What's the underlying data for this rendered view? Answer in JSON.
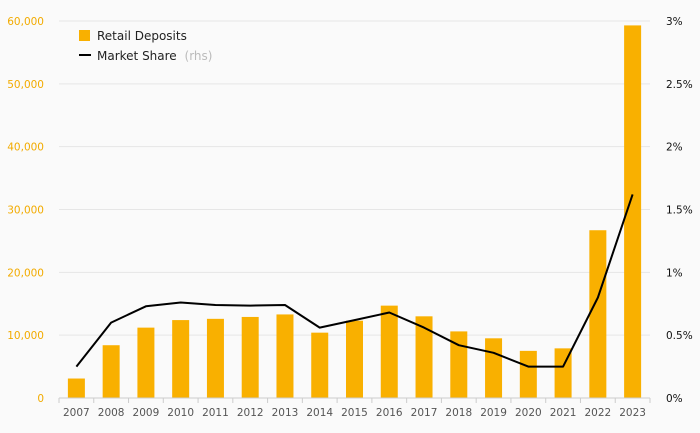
{
  "chart_data": {
    "type": "bar",
    "categories": [
      "2007",
      "2008",
      "2009",
      "2010",
      "2011",
      "2012",
      "2013",
      "2014",
      "2015",
      "2016",
      "2017",
      "2018",
      "2019",
      "2020",
      "2021",
      "2022",
      "2023"
    ],
    "series": [
      {
        "name": "Retail Deposits",
        "type": "bar",
        "axis": "left",
        "color": "#f9b000",
        "values": [
          3100,
          8400,
          11200,
          12400,
          12600,
          12900,
          13300,
          10400,
          12300,
          14700,
          13000,
          10600,
          9500,
          7500,
          7900,
          26700,
          59300
        ]
      },
      {
        "name": "Market Share",
        "type": "line",
        "axis": "right",
        "color": "#000000",
        "values": [
          0.25,
          0.6,
          0.73,
          0.76,
          0.74,
          0.735,
          0.74,
          0.56,
          0.62,
          0.68,
          0.56,
          0.42,
          0.36,
          0.25,
          0.25,
          0.8,
          1.62
        ]
      }
    ],
    "yleft": {
      "ylim": [
        0,
        60000
      ],
      "ticks": [
        "0",
        "10,000",
        "20,000",
        "30,000",
        "40,000",
        "50,000",
        "60,000"
      ],
      "color": "#f2ab00"
    },
    "yright": {
      "ylim": [
        0,
        3
      ],
      "ticks": [
        "0%",
        "0.5%",
        "1%",
        "1.5%",
        "2%",
        "2.5%",
        "3%"
      ]
    },
    "legend": {
      "position": "top-left",
      "bar_label": "Retail Deposits",
      "line_label": "Market Share",
      "line_suffix": "(rhs)"
    },
    "title": "",
    "xlabel": "",
    "ylabel": "",
    "grid": true
  }
}
